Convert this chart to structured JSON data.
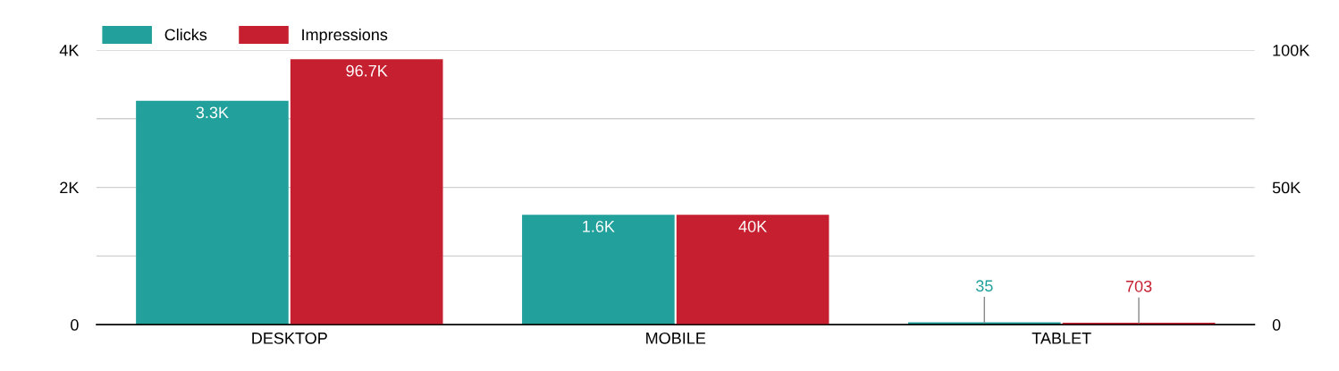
{
  "chart_data": {
    "type": "bar",
    "categories": [
      "DESKTOP",
      "MOBILE",
      "TABLET"
    ],
    "series": [
      {
        "name": "Clicks",
        "color": "#22a09b",
        "values": [
          3260,
          1600,
          35
        ],
        "value_labels": [
          "3.3K",
          "1.6K",
          "35"
        ]
      },
      {
        "name": "Impressions",
        "color": "#c62030",
        "values": [
          96700,
          40000,
          703
        ],
        "axis": "y2",
        "value_labels": [
          "96.7K",
          "40K",
          "703"
        ]
      }
    ],
    "ylim": [
      0,
      4000
    ],
    "yticks": [
      0,
      {
        "value": 1000,
        "label": null
      },
      {
        "value": 2000,
        "label": "2K"
      },
      {
        "value": 3000,
        "label": null
      },
      {
        "value": 4000,
        "label": "4K"
      }
    ],
    "y2lim": [
      0,
      100000
    ],
    "y2ticks": [
      0,
      {
        "value": 50000,
        "label": "50K"
      },
      {
        "value": 100000,
        "label": "100K"
      }
    ],
    "grid": "y",
    "legend": "top left"
  }
}
